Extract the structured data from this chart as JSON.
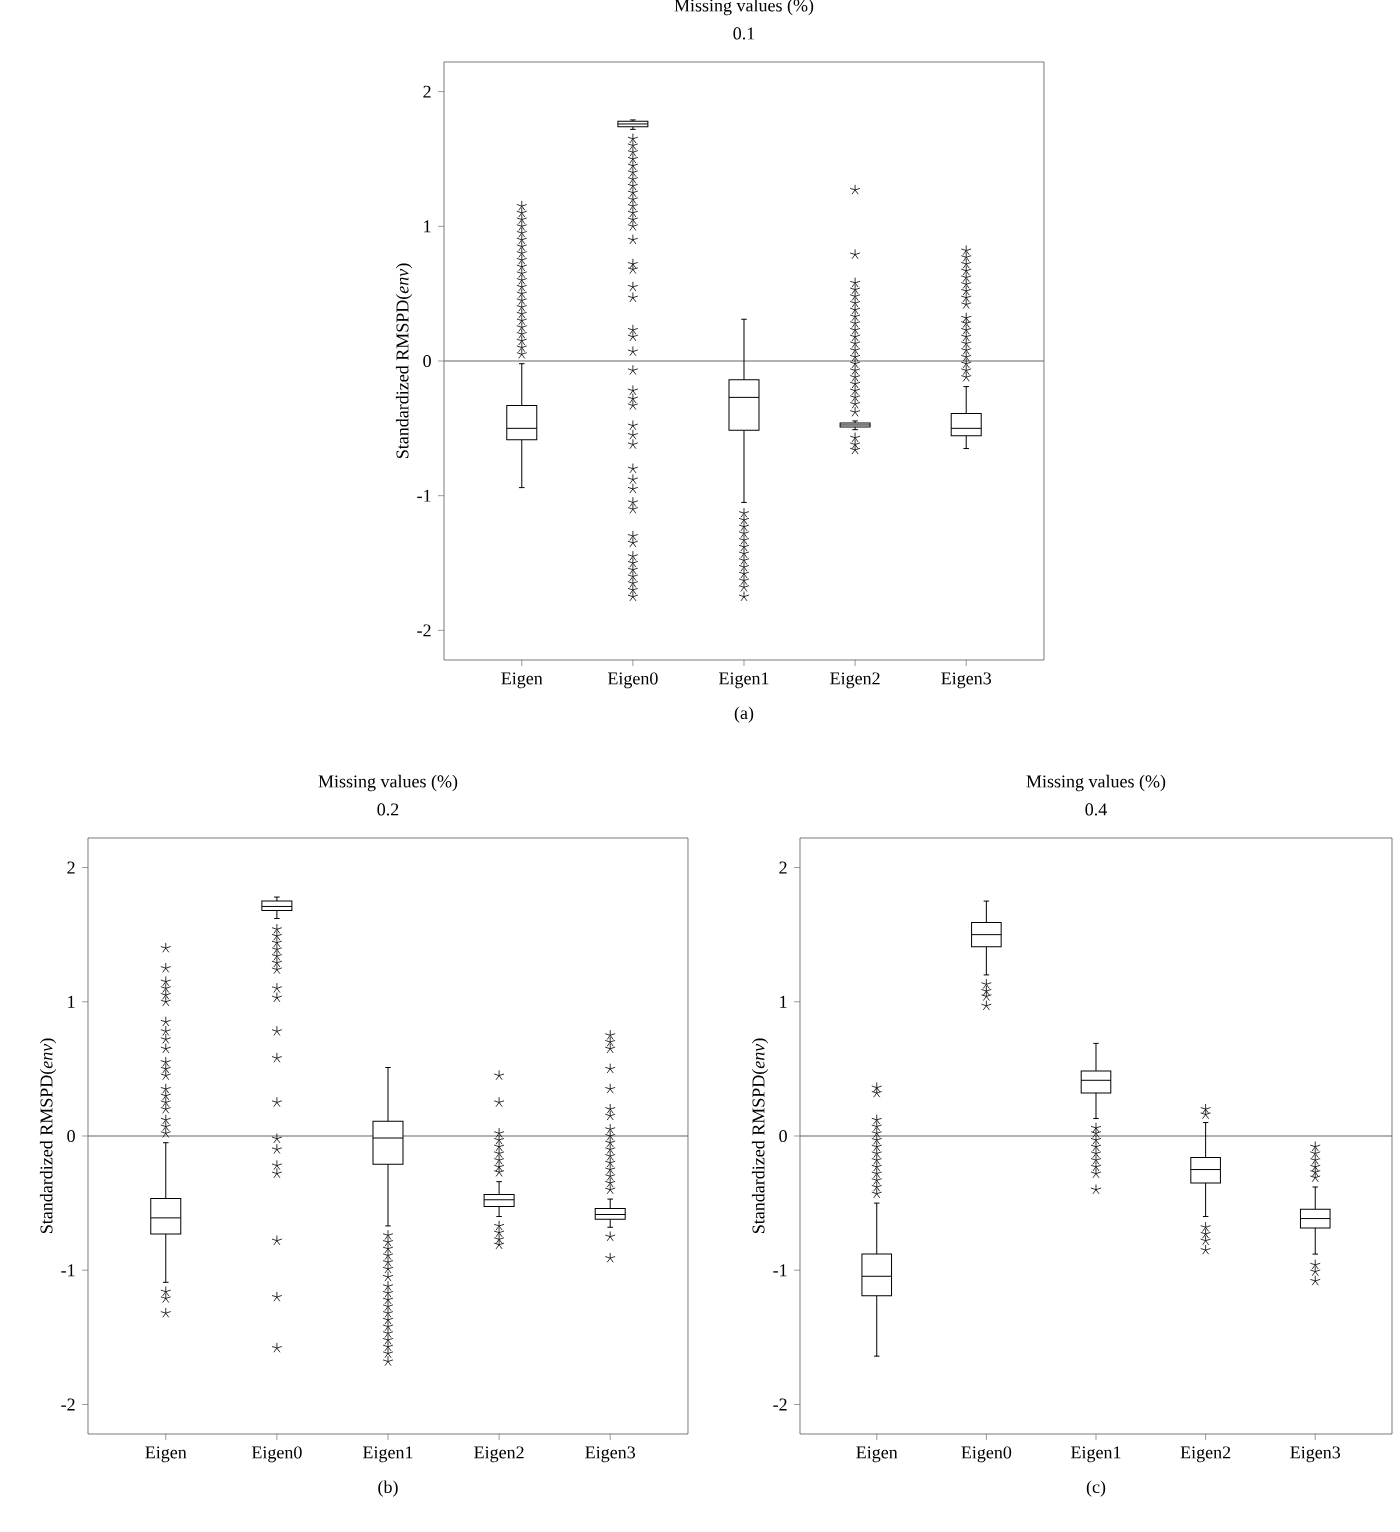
{
  "chart_data": [
    {
      "type": "box",
      "title": "Missing values (%)",
      "subtitle": "0.1",
      "ylabel": "Standardized RMSPD(*env*)",
      "annotations": [
        "(a)"
      ],
      "categories": [
        "Eigen",
        "Eigen0",
        "Eigen1",
        "Eigen2",
        "Eigen3"
      ],
      "ylim": [
        -2.22,
        2.22
      ],
      "yticks": [
        -2,
        -1,
        0,
        1,
        2
      ],
      "marker": "star",
      "color": "#000000",
      "ref_lines": [
        {
          "axis": "y",
          "value": 0
        }
      ],
      "boxes": [
        {
          "low": -0.94,
          "q1": -0.585,
          "median": -0.5,
          "q3": -0.33,
          "high": -0.02,
          "outliers": [
            0.05,
            0.1,
            0.15,
            0.2,
            0.25,
            0.3,
            0.35,
            0.4,
            0.45,
            0.5,
            0.55,
            0.6,
            0.65,
            0.7,
            0.75,
            0.8,
            0.85,
            0.9,
            0.95,
            1.0,
            1.05,
            1.1,
            1.15
          ]
        },
        {
          "low": 1.72,
          "q1": 1.74,
          "median": 1.76,
          "q3": 1.78,
          "high": 1.79,
          "outliers": [
            1.65,
            1.6,
            1.55,
            1.5,
            1.45,
            1.4,
            1.35,
            1.3,
            1.25,
            1.2,
            1.15,
            1.1,
            1.05,
            1.0,
            0.9,
            0.72,
            0.68,
            0.55,
            0.47,
            0.23,
            0.18,
            0.07,
            -0.07,
            -0.22,
            -0.28,
            -0.33,
            -0.48,
            -0.55,
            -0.62,
            -0.8,
            -0.88,
            -0.95,
            -1.05,
            -1.1,
            -1.3,
            -1.35,
            -1.45,
            -1.5,
            -1.55,
            -1.6,
            -1.65,
            -1.7,
            -1.75
          ]
        },
        {
          "low": -1.05,
          "q1": -0.515,
          "median": -0.27,
          "q3": -0.14,
          "high": 0.31,
          "outliers": [
            -1.13,
            -1.18,
            -1.23,
            -1.28,
            -1.33,
            -1.38,
            -1.43,
            -1.48,
            -1.53,
            -1.58,
            -1.63,
            -1.68,
            -1.75
          ]
        },
        {
          "low": -0.51,
          "q1": -0.49,
          "median": -0.475,
          "q3": -0.46,
          "high": -0.445,
          "outliers": [
            1.27,
            0.79,
            0.58,
            0.53,
            0.48,
            0.43,
            0.38,
            0.33,
            0.28,
            0.23,
            0.18,
            0.13,
            0.08,
            0.03,
            -0.02,
            -0.07,
            -0.12,
            -0.17,
            -0.22,
            -0.27,
            -0.32,
            -0.38,
            -0.57,
            -0.62,
            -0.66
          ]
        },
        {
          "low": -0.65,
          "q1": -0.555,
          "median": -0.5,
          "q3": -0.39,
          "high": -0.19,
          "outliers": [
            -0.12,
            -0.07,
            -0.02,
            0.03,
            0.08,
            0.13,
            0.18,
            0.23,
            0.28,
            0.32,
            0.42,
            0.47,
            0.52,
            0.57,
            0.62,
            0.67,
            0.72,
            0.77,
            0.82
          ]
        }
      ]
    },
    {
      "type": "box",
      "title": "Missing values (%)",
      "subtitle": "0.2",
      "ylabel": "Standardized RMSPD(*env*)",
      "annotations": [
        "(b)"
      ],
      "categories": [
        "Eigen",
        "Eigen0",
        "Eigen1",
        "Eigen2",
        "Eigen3"
      ],
      "ylim": [
        -2.22,
        2.22
      ],
      "yticks": [
        -2,
        -1,
        0,
        1,
        2
      ],
      "marker": "star",
      "color": "#000000",
      "ref_lines": [
        {
          "axis": "y",
          "value": 0
        }
      ],
      "boxes": [
        {
          "low": -1.09,
          "q1": -0.73,
          "median": -0.61,
          "q3": -0.465,
          "high": -0.05,
          "outliers": [
            0.02,
            0.07,
            0.12,
            0.2,
            0.25,
            0.3,
            0.35,
            0.45,
            0.5,
            0.55,
            0.65,
            0.72,
            0.78,
            0.85,
            1.0,
            1.05,
            1.1,
            1.15,
            1.25,
            1.4,
            -1.16,
            -1.21,
            -1.32
          ]
        },
        {
          "low": 1.62,
          "q1": 1.68,
          "median": 1.71,
          "q3": 1.75,
          "high": 1.78,
          "outliers": [
            1.54,
            1.49,
            1.44,
            1.39,
            1.34,
            1.29,
            1.24,
            1.1,
            1.03,
            0.78,
            0.58,
            0.25,
            -0.02,
            -0.1,
            -0.22,
            -0.28,
            -0.78,
            -1.2,
            -1.58
          ]
        },
        {
          "low": -0.67,
          "q1": -0.21,
          "median": -0.015,
          "q3": 0.11,
          "high": 0.51,
          "outliers": [
            -0.74,
            -0.79,
            -0.84,
            -0.89,
            -0.94,
            -0.99,
            -1.05,
            -1.12,
            -1.17,
            -1.22,
            -1.27,
            -1.32,
            -1.37,
            -1.42,
            -1.47,
            -1.52,
            -1.57,
            -1.62,
            -1.68
          ]
        },
        {
          "low": -0.6,
          "q1": -0.525,
          "median": -0.475,
          "q3": -0.435,
          "high": -0.34,
          "outliers": [
            0.45,
            0.25,
            0.02,
            -0.03,
            -0.08,
            -0.13,
            -0.18,
            -0.23,
            -0.27,
            -0.67,
            -0.72,
            -0.77,
            -0.81
          ]
        },
        {
          "low": -0.68,
          "q1": -0.62,
          "median": -0.585,
          "q3": -0.54,
          "high": -0.47,
          "outliers": [
            0.75,
            0.7,
            0.65,
            0.5,
            0.35,
            0.2,
            0.15,
            0.05,
            0.0,
            -0.05,
            -0.1,
            -0.15,
            -0.2,
            -0.25,
            -0.3,
            -0.35,
            -0.4,
            -0.75,
            -0.91
          ]
        }
      ]
    },
    {
      "type": "box",
      "title": "Missing values (%)",
      "subtitle": "0.4",
      "ylabel": "Standardized RMSPD(*env*)",
      "annotations": [
        "(c)"
      ],
      "categories": [
        "Eigen",
        "Eigen0",
        "Eigen1",
        "Eigen2",
        "Eigen3"
      ],
      "ylim": [
        -2.22,
        2.22
      ],
      "yticks": [
        -2,
        -1,
        0,
        1,
        2
      ],
      "marker": "star",
      "color": "#000000",
      "ref_lines": [
        {
          "axis": "y",
          "value": 0
        }
      ],
      "boxes": [
        {
          "low": -1.64,
          "q1": -1.19,
          "median": -1.045,
          "q3": -0.88,
          "high": -0.5,
          "outliers": [
            0.36,
            0.32,
            0.12,
            0.07,
            0.02,
            -0.03,
            -0.08,
            -0.13,
            -0.18,
            -0.23,
            -0.28,
            -0.33,
            -0.38,
            -0.43
          ]
        },
        {
          "low": 1.2,
          "q1": 1.41,
          "median": 1.5,
          "q3": 1.59,
          "high": 1.75,
          "outliers": [
            1.13,
            1.08,
            1.04,
            0.97
          ]
        },
        {
          "low": 0.13,
          "q1": 0.32,
          "median": 0.415,
          "q3": 0.485,
          "high": 0.69,
          "outliers": [
            0.06,
            0.02,
            -0.03,
            -0.08,
            -0.13,
            -0.18,
            -0.23,
            -0.28,
            -0.4
          ]
        },
        {
          "low": -0.6,
          "q1": -0.35,
          "median": -0.25,
          "q3": -0.16,
          "high": 0.1,
          "outliers": [
            0.2,
            0.16,
            -0.68,
            -0.73,
            -0.78,
            -0.85
          ]
        },
        {
          "low": -0.88,
          "q1": -0.685,
          "median": -0.615,
          "q3": -0.545,
          "high": -0.38,
          "outliers": [
            -0.08,
            -0.13,
            -0.18,
            -0.23,
            -0.27,
            -0.31,
            -0.96,
            -1.01,
            -1.08
          ]
        }
      ]
    }
  ]
}
